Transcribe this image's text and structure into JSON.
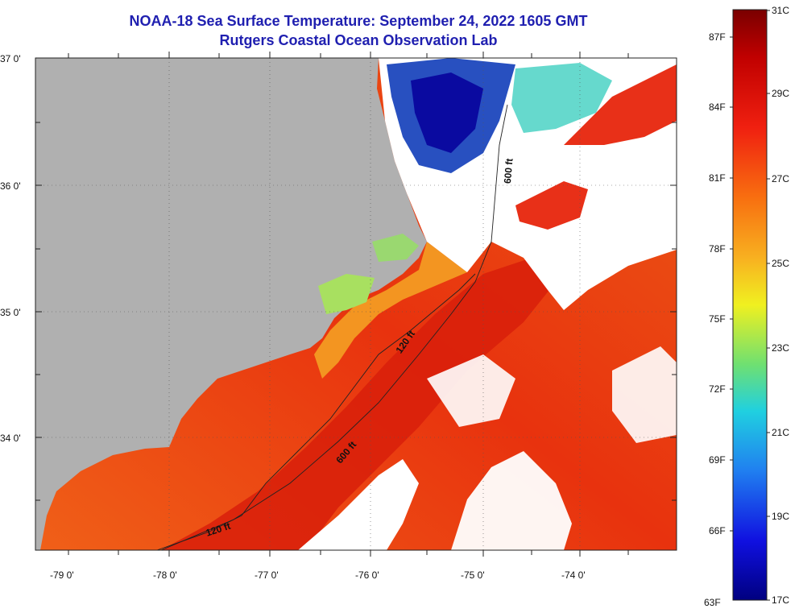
{
  "title": {
    "line1": "NOAA-18 Sea Surface Temperature:  September 24, 2022 1605 GMT",
    "line2": "Rutgers Coastal Ocean Observation Lab"
  },
  "map": {
    "lat_labels": [
      "37 0'",
      "36 0'",
      "35 0'",
      "34 0'"
    ],
    "lon_labels": [
      "-79 0'",
      "-78 0'",
      "-77 0'",
      "-76 0'",
      "-75 0'",
      "-74 0'"
    ],
    "contour_labels": [
      "120 ft",
      "600 ft",
      "120 ft",
      "600 ft"
    ],
    "colors": {
      "land": "#b0b0b0",
      "cloud": "#ffffff",
      "warm_core": "#d81e0a",
      "shelf": "#ee4e10",
      "nearshore": "#f08020",
      "cool": "#2a8cd8",
      "cold": "#0a0aa0"
    }
  },
  "colorbar": {
    "celsius_labels": [
      "31C",
      "29C",
      "27C",
      "25C",
      "23C",
      "21C",
      "19C",
      "17C"
    ],
    "fahrenheit_labels": [
      "87F",
      "84F",
      "81F",
      "78F",
      "75F",
      "72F",
      "69F",
      "66F",
      "63F"
    ]
  }
}
